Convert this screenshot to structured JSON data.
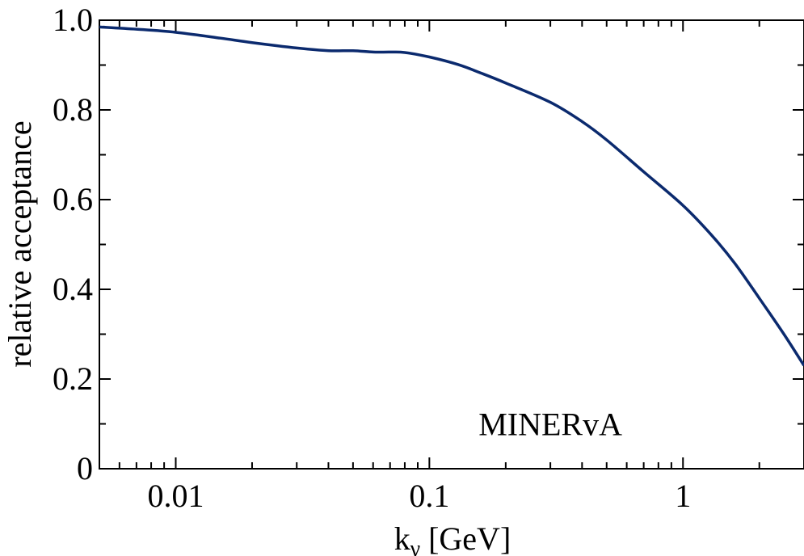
{
  "chart_data": {
    "type": "line",
    "title": "",
    "xlabel": "k",
    "xlabel_subscript": "γ",
    "xlabel_unit": "[GeV]",
    "ylabel": "relative acceptance",
    "xscale": "log",
    "xlim": [
      0.005,
      3
    ],
    "ylim": [
      0,
      1.0
    ],
    "xticks": [
      {
        "value": 0.01,
        "label": "0.01"
      },
      {
        "value": 0.1,
        "label": "0.1"
      },
      {
        "value": 1,
        "label": "1"
      }
    ],
    "yticks": [
      {
        "value": 0,
        "label": "0"
      },
      {
        "value": 0.2,
        "label": "0.2"
      },
      {
        "value": 0.4,
        "label": "0.4"
      },
      {
        "value": 0.6,
        "label": "0.6"
      },
      {
        "value": 0.8,
        "label": "0.8"
      },
      {
        "value": 1.0,
        "label": "1.0"
      }
    ],
    "grid": false,
    "annotation": {
      "text": "MINERvA",
      "x": 0.3,
      "y": 0.1
    },
    "series": [
      {
        "color": "#0b2a6e",
        "x": [
          0.005,
          0.007,
          0.01,
          0.015,
          0.02,
          0.03,
          0.04,
          0.05,
          0.06,
          0.07,
          0.08,
          0.1,
          0.13,
          0.16,
          0.2,
          0.3,
          0.4,
          0.5,
          0.7,
          1.0,
          1.3,
          1.6,
          2.0,
          2.5,
          3.0
        ],
        "y": [
          0.985,
          0.98,
          0.973,
          0.96,
          0.95,
          0.938,
          0.932,
          0.932,
          0.929,
          0.929,
          0.928,
          0.918,
          0.901,
          0.882,
          0.86,
          0.817,
          0.774,
          0.733,
          0.662,
          0.587,
          0.52,
          0.458,
          0.38,
          0.3,
          0.23
        ]
      }
    ]
  }
}
